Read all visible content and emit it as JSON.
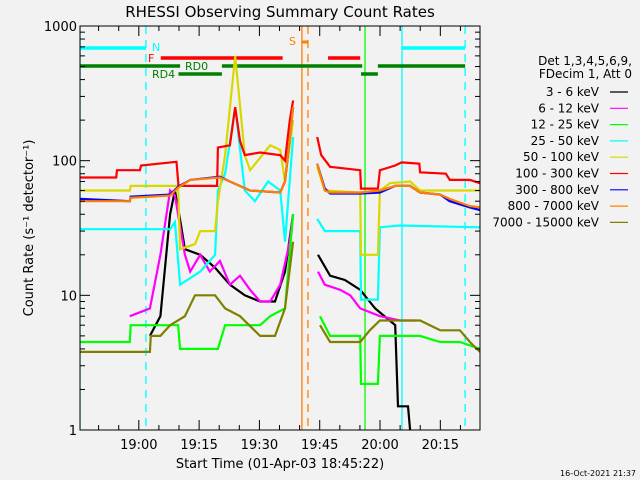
{
  "chart_data": {
    "type": "line",
    "title": "RHESSI Observing Summary Count Rates",
    "xlabel": "Start Time (01-Apr-03 18:45:22)",
    "ylabel": "Count Rate (s⁻¹ detector⁻¹)",
    "x_units": "minutes since 18:45:22",
    "xlim": [
      0,
      99.5
    ],
    "yscale": "log",
    "ylim": [
      1,
      1000
    ],
    "x_ticks": [
      {
        "value": 14.63,
        "label": "19:00"
      },
      {
        "value": 29.63,
        "label": "19:15"
      },
      {
        "value": 44.63,
        "label": "19:30"
      },
      {
        "value": 59.63,
        "label": "19:45"
      },
      {
        "value": 74.63,
        "label": "20:00"
      },
      {
        "value": 89.63,
        "label": "20:15"
      }
    ],
    "y_ticks": [
      {
        "value": 1,
        "label": "1"
      },
      {
        "value": 10,
        "label": "10"
      },
      {
        "value": 100,
        "label": "100"
      },
      {
        "value": 1000,
        "label": "1000"
      }
    ],
    "legend_header": [
      "Det 1,3,4,5,6,9,",
      "FDecim 1, Att 0"
    ],
    "legend_position": "right",
    "series": [
      {
        "name": "3 - 6 keV",
        "color": "#000000",
        "points": [
          [
            17.4,
            5
          ],
          [
            20,
            7
          ],
          [
            22.4,
            40
          ],
          [
            23.6,
            60
          ],
          [
            25,
            35
          ],
          [
            26.1,
            22
          ],
          [
            29.9,
            20
          ],
          [
            33.6,
            16
          ],
          [
            37.3,
            12
          ],
          [
            41,
            10
          ],
          [
            44.8,
            9
          ],
          [
            48.5,
            9
          ],
          [
            51,
            15
          ],
          [
            53,
            40
          ],
          null,
          [
            59.2,
            20
          ],
          [
            62.2,
            14
          ],
          [
            65.9,
            13
          ],
          [
            69.7,
            11
          ],
          [
            73.4,
            8
          ],
          [
            78.4,
            6
          ],
          [
            79.1,
            1.5
          ],
          [
            81.6,
            1.5
          ],
          [
            82.1,
            1
          ]
        ]
      },
      {
        "name": "6 - 12 keV",
        "color": "#ff00ff",
        "points": [
          [
            12.4,
            7
          ],
          [
            17.4,
            8
          ],
          [
            20,
            20
          ],
          [
            22.4,
            60
          ],
          [
            23.6,
            55
          ],
          [
            26.1,
            20
          ],
          [
            27.4,
            15
          ],
          [
            29.9,
            20
          ],
          [
            32.3,
            15
          ],
          [
            34.8,
            18
          ],
          [
            37.3,
            12
          ],
          [
            39.8,
            14
          ],
          [
            42.3,
            11
          ],
          [
            44.8,
            9
          ],
          [
            47.3,
            9
          ],
          [
            49.8,
            12
          ],
          [
            52.2,
            25
          ],
          [
            53,
            40
          ],
          null,
          [
            59.2,
            15
          ],
          [
            60.9,
            12
          ],
          [
            64.7,
            11
          ],
          [
            67.2,
            10
          ],
          [
            69.7,
            8
          ],
          [
            74.6,
            7
          ],
          [
            79.6,
            6.5
          ],
          [
            83.3,
            6.5
          ]
        ]
      },
      {
        "name": "12 - 25 keV",
        "color": "#00ff00",
        "points": [
          [
            0,
            4.5
          ],
          [
            12.4,
            4.5
          ],
          [
            12.6,
            6
          ],
          [
            24.4,
            6
          ],
          [
            24.9,
            4
          ],
          [
            34.3,
            4
          ],
          [
            36.1,
            6
          ],
          [
            44.8,
            6
          ],
          [
            47.3,
            7
          ],
          [
            51,
            8
          ],
          [
            53,
            40
          ],
          null,
          [
            59.7,
            7
          ],
          [
            62.2,
            5
          ],
          [
            69.7,
            5
          ],
          [
            69.9,
            2.2
          ],
          [
            74.1,
            2.2
          ],
          [
            74.6,
            5
          ],
          [
            84.6,
            5
          ],
          [
            89.6,
            4.5
          ],
          [
            94.5,
            4.5
          ],
          [
            99.5,
            4
          ]
        ]
      },
      {
        "name": "25 - 50 keV",
        "color": "#00ffff",
        "points": [
          [
            0,
            31
          ],
          [
            22.4,
            31
          ],
          [
            23.6,
            35
          ],
          [
            24.9,
            12
          ],
          [
            29.9,
            15
          ],
          [
            33.6,
            20
          ],
          [
            34.3,
            60
          ],
          [
            36.1,
            80
          ],
          [
            38.6,
            250
          ],
          [
            41,
            60
          ],
          [
            43.5,
            50
          ],
          [
            46.8,
            70
          ],
          [
            49.8,
            60
          ],
          [
            51,
            25
          ],
          [
            53,
            150
          ],
          null,
          [
            59,
            37
          ],
          [
            60.9,
            30
          ],
          [
            69.7,
            30
          ],
          [
            69.9,
            9.3
          ],
          [
            74.1,
            9.3
          ],
          [
            74.6,
            32
          ],
          [
            79.6,
            33
          ],
          [
            99.5,
            32
          ]
        ]
      },
      {
        "name": "50 - 100 keV",
        "color": "#d8d800",
        "points": [
          [
            0,
            60
          ],
          [
            12.4,
            60
          ],
          [
            12.6,
            65
          ],
          [
            24.4,
            65
          ],
          [
            24.9,
            22
          ],
          [
            28.6,
            24
          ],
          [
            29.9,
            30
          ],
          [
            33.6,
            30
          ],
          [
            34.3,
            50
          ],
          [
            36.1,
            110
          ],
          [
            38.6,
            600
          ],
          [
            41,
            110
          ],
          [
            42.3,
            85
          ],
          [
            47.3,
            130
          ],
          [
            49.8,
            120
          ],
          [
            51,
            70
          ],
          [
            53,
            200
          ],
          null,
          [
            59,
            90
          ],
          [
            60.9,
            60
          ],
          [
            69.7,
            58
          ],
          [
            69.9,
            20
          ],
          [
            74.1,
            20
          ],
          [
            74.6,
            60
          ],
          [
            77.1,
            68
          ],
          [
            82.1,
            70
          ],
          [
            84.6,
            60
          ],
          [
            99.5,
            60
          ]
        ]
      },
      {
        "name": "100 - 300 keV",
        "color": "#ff0000",
        "points": [
          [
            0,
            75
          ],
          [
            9,
            75
          ],
          [
            9.2,
            85
          ],
          [
            14.9,
            85
          ],
          [
            15.2,
            92
          ],
          [
            24,
            98
          ],
          [
            24.5,
            65
          ],
          [
            34.1,
            65
          ],
          [
            34.3,
            125
          ],
          [
            37.3,
            130
          ],
          [
            38.6,
            250
          ],
          [
            39.8,
            140
          ],
          [
            41,
            110
          ],
          [
            44.8,
            115
          ],
          [
            49.8,
            110
          ],
          [
            51,
            100
          ],
          [
            52.2,
            200
          ],
          [
            53,
            280
          ],
          null,
          [
            59,
            150
          ],
          [
            60,
            110
          ],
          [
            62.2,
            90
          ],
          [
            69.7,
            85
          ],
          [
            69.9,
            62
          ],
          [
            74.1,
            62
          ],
          [
            74.6,
            85
          ],
          [
            78.4,
            92
          ],
          [
            80,
            97
          ],
          [
            84.4,
            95
          ],
          [
            84.6,
            82
          ],
          [
            91,
            80
          ],
          [
            92,
            72
          ],
          [
            97,
            72
          ],
          [
            99.5,
            68
          ]
        ]
      },
      {
        "name": "300 - 800 keV",
        "color": "#0000ff",
        "points": [
          [
            0,
            52
          ],
          [
            12.4,
            50
          ],
          [
            12.6,
            54
          ],
          [
            22.4,
            56
          ],
          [
            24.4,
            64
          ],
          [
            27.4,
            72
          ],
          [
            34.8,
            76
          ],
          [
            37.3,
            70
          ],
          [
            42.3,
            60
          ],
          [
            49.8,
            58
          ],
          [
            51,
            70
          ],
          [
            53,
            250
          ],
          null,
          [
            59,
            95
          ],
          [
            60.9,
            62
          ],
          [
            62.2,
            57
          ],
          [
            69.7,
            57
          ],
          [
            74.6,
            58
          ],
          [
            78.4,
            65
          ],
          [
            82.1,
            65
          ],
          [
            84.6,
            58
          ],
          [
            89.6,
            56
          ],
          [
            92,
            50
          ],
          [
            97,
            45
          ],
          [
            99.5,
            43
          ]
        ]
      },
      {
        "name": "800 - 7000 keV",
        "color": "#ff8000",
        "points": [
          [
            0,
            50
          ],
          [
            12.4,
            50
          ],
          [
            12.6,
            53
          ],
          [
            22.4,
            55
          ],
          [
            24.4,
            63
          ],
          [
            27.4,
            72
          ],
          [
            34.8,
            75
          ],
          [
            37.3,
            70
          ],
          [
            42.3,
            60
          ],
          [
            49.8,
            58
          ],
          [
            51,
            70
          ],
          [
            53,
            250
          ],
          null,
          [
            59,
            95
          ],
          [
            60.9,
            60
          ],
          [
            62.2,
            58
          ],
          [
            69.7,
            58
          ],
          [
            74.6,
            60
          ],
          [
            78.4,
            65
          ],
          [
            82.1,
            65
          ],
          [
            84.6,
            58
          ],
          [
            89.6,
            56
          ],
          [
            92,
            52
          ],
          [
            97,
            46
          ],
          [
            99.5,
            45
          ]
        ]
      },
      {
        "name": "7000 - 15000 keV",
        "color": "#808000",
        "points": [
          [
            0,
            3.8
          ],
          [
            17.4,
            3.8
          ],
          [
            17.6,
            5
          ],
          [
            20,
            5
          ],
          [
            22.4,
            6
          ],
          [
            26.1,
            7
          ],
          [
            28.6,
            10
          ],
          [
            33.6,
            10
          ],
          [
            36.1,
            8
          ],
          [
            39.8,
            7
          ],
          [
            44.8,
            5
          ],
          [
            48.5,
            5
          ],
          [
            51,
            8
          ],
          [
            53,
            25
          ],
          null,
          [
            59.7,
            6
          ],
          [
            62.2,
            4.5
          ],
          [
            69.7,
            4.5
          ],
          [
            72.1,
            5.5
          ],
          [
            74.6,
            6.5
          ],
          [
            84.6,
            6.5
          ],
          [
            89.6,
            5.5
          ],
          [
            94.5,
            5.5
          ],
          [
            97,
            4.5
          ],
          [
            99.5,
            3.8
          ]
        ]
      }
    ],
    "vertical_markers": [
      {
        "minute": 0,
        "color": "#00ffff",
        "style": "solid"
      },
      {
        "minute": 16.4,
        "color": "#00ffff",
        "style": "dashed"
      },
      {
        "minute": 55.2,
        "color": "#ff8000",
        "style": "solid"
      },
      {
        "minute": 56.7,
        "color": "#ff8000",
        "style": "dashed"
      },
      {
        "minute": 70.9,
        "color": "#00ff00",
        "style": "solid"
      },
      {
        "minute": 80.1,
        "color": "#00ffff",
        "style": "solid"
      },
      {
        "minute": 95.8,
        "color": "#00ffff",
        "style": "dashed"
      }
    ],
    "flags": [
      {
        "label": "N",
        "color": "#00ffff",
        "intervals": [
          [
            0,
            16.4
          ],
          [
            80.1,
            95.8
          ]
        ]
      },
      {
        "label": "F",
        "color": "#ff0000",
        "intervals": [
          [
            20.1,
            50.4
          ],
          [
            61.7,
            69.7
          ]
        ]
      },
      {
        "label": "RD0",
        "color": "#008000",
        "intervals": [
          [
            0,
            24.9
          ],
          [
            35.3,
            70.2
          ],
          [
            74.1,
            95.8
          ]
        ]
      },
      {
        "label": "RD4",
        "color": "#008000",
        "intervals": [
          [
            24.5,
            35.3
          ],
          [
            69.9,
            74.1
          ]
        ]
      },
      {
        "label": "S",
        "color": "#ff8000",
        "intervals": [
          [
            55.2,
            56.7
          ]
        ]
      }
    ]
  },
  "footer": {
    "timestamp": "16-Oct-2021 21:37"
  }
}
